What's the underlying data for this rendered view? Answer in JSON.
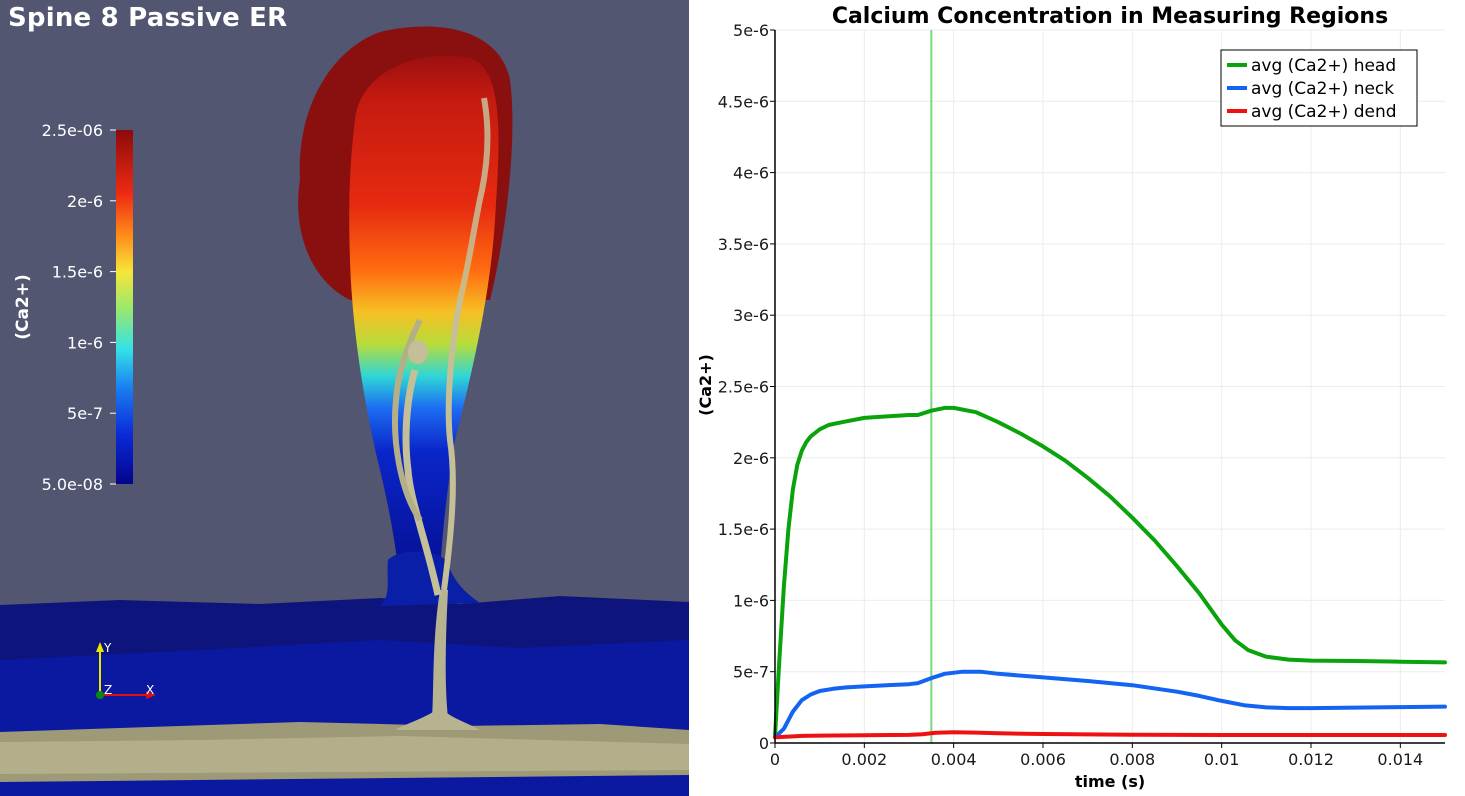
{
  "render_view": {
    "title": "Spine 8 Passive ER",
    "colorbar": {
      "label": "(Ca2+)",
      "ticks": [
        "2.5e-06",
        "2e-6",
        "1.5e-6",
        "1e-6",
        "5e-7",
        "5.0e-08"
      ]
    },
    "axes_triad": {
      "y": "Y",
      "z": "Z",
      "x": "X"
    }
  },
  "chart_data": {
    "type": "line",
    "title": "Calcium Concentration in Measuring Regions",
    "xlabel": "time (s)",
    "ylabel": "(Ca2+)",
    "xlim": [
      0,
      0.015
    ],
    "ylim": [
      0,
      5e-06
    ],
    "x_ticks": [
      "0",
      "0.002",
      "0.004",
      "0.006",
      "0.008",
      "0.01",
      "0.012",
      "0.014"
    ],
    "y_ticks": [
      "0",
      "5e-7",
      "1e-6",
      "1.5e-6",
      "2e-6",
      "2.5e-6",
      "3e-6",
      "3.5e-6",
      "4e-6",
      "4.5e-6",
      "5e-6"
    ],
    "current_time": 0.0035,
    "grid": true,
    "legend_position": "top-right",
    "series": [
      {
        "name": "avg (Ca2+) head",
        "color": "#0ba30b",
        "x": [
          0,
          0.0001,
          0.0002,
          0.0003,
          0.0004,
          0.0005,
          0.0006,
          0.0007,
          0.0008,
          0.001,
          0.0012,
          0.0015,
          0.002,
          0.0025,
          0.003,
          0.0032,
          0.0035,
          0.0038,
          0.004,
          0.0045,
          0.005,
          0.0055,
          0.006,
          0.0065,
          0.007,
          0.0075,
          0.008,
          0.0085,
          0.009,
          0.0095,
          0.01,
          0.0103,
          0.0106,
          0.011,
          0.0115,
          0.012,
          0.013,
          0.014,
          0.015
        ],
        "y": [
          5e-08,
          6e-07,
          1.1e-06,
          1.5e-06,
          1.78e-06,
          1.95e-06,
          2.05e-06,
          2.11e-06,
          2.15e-06,
          2.2e-06,
          2.23e-06,
          2.25e-06,
          2.28e-06,
          2.29e-06,
          2.3e-06,
          2.3e-06,
          2.33e-06,
          2.35e-06,
          2.35e-06,
          2.32e-06,
          2.25e-06,
          2.17e-06,
          2.08e-06,
          1.98e-06,
          1.86e-06,
          1.73e-06,
          1.58e-06,
          1.42e-06,
          1.24e-06,
          1.05e-06,
          8.3e-07,
          7.2e-07,
          6.5e-07,
          6.05e-07,
          5.85e-07,
          5.78e-07,
          5.75e-07,
          5.7e-07,
          5.65e-07
        ]
      },
      {
        "name": "avg (Ca2+) neck",
        "color": "#1464f4",
        "x": [
          0,
          0.0002,
          0.0004,
          0.0006,
          0.0008,
          0.001,
          0.0013,
          0.0016,
          0.002,
          0.0025,
          0.003,
          0.0032,
          0.0035,
          0.0038,
          0.0042,
          0.0046,
          0.005,
          0.006,
          0.007,
          0.008,
          0.009,
          0.0095,
          0.01,
          0.0105,
          0.011,
          0.0115,
          0.012,
          0.013,
          0.014,
          0.015
        ],
        "y": [
          4e-08,
          1e-07,
          2.2e-07,
          3e-07,
          3.4e-07,
          3.65e-07,
          3.8e-07,
          3.9e-07,
          3.97e-07,
          4.05e-07,
          4.12e-07,
          4.2e-07,
          4.55e-07,
          4.85e-07,
          5e-07,
          5e-07,
          4.85e-07,
          4.6e-07,
          4.35e-07,
          4.05e-07,
          3.6e-07,
          3.3e-07,
          2.95e-07,
          2.65e-07,
          2.5e-07,
          2.45e-07,
          2.45e-07,
          2.48e-07,
          2.52e-07,
          2.55e-07
        ]
      },
      {
        "name": "avg (Ca2+) dend",
        "color": "#ee1111",
        "x": [
          0,
          0.0003,
          0.0006,
          0.001,
          0.002,
          0.003,
          0.0033,
          0.0036,
          0.004,
          0.0045,
          0.005,
          0.006,
          0.007,
          0.008,
          0.009,
          0.01,
          0.011,
          0.012,
          0.013,
          0.014,
          0.015
        ],
        "y": [
          4e-08,
          4.5e-08,
          5e-08,
          5.2e-08,
          5.5e-08,
          5.7e-08,
          6.2e-08,
          7.2e-08,
          7.6e-08,
          7.3e-08,
          6.8e-08,
          6.3e-08,
          6e-08,
          5.8e-08,
          5.7e-08,
          5.6e-08,
          5.6e-08,
          5.6e-08,
          5.6e-08,
          5.6e-08,
          5.6e-08
        ]
      }
    ]
  }
}
